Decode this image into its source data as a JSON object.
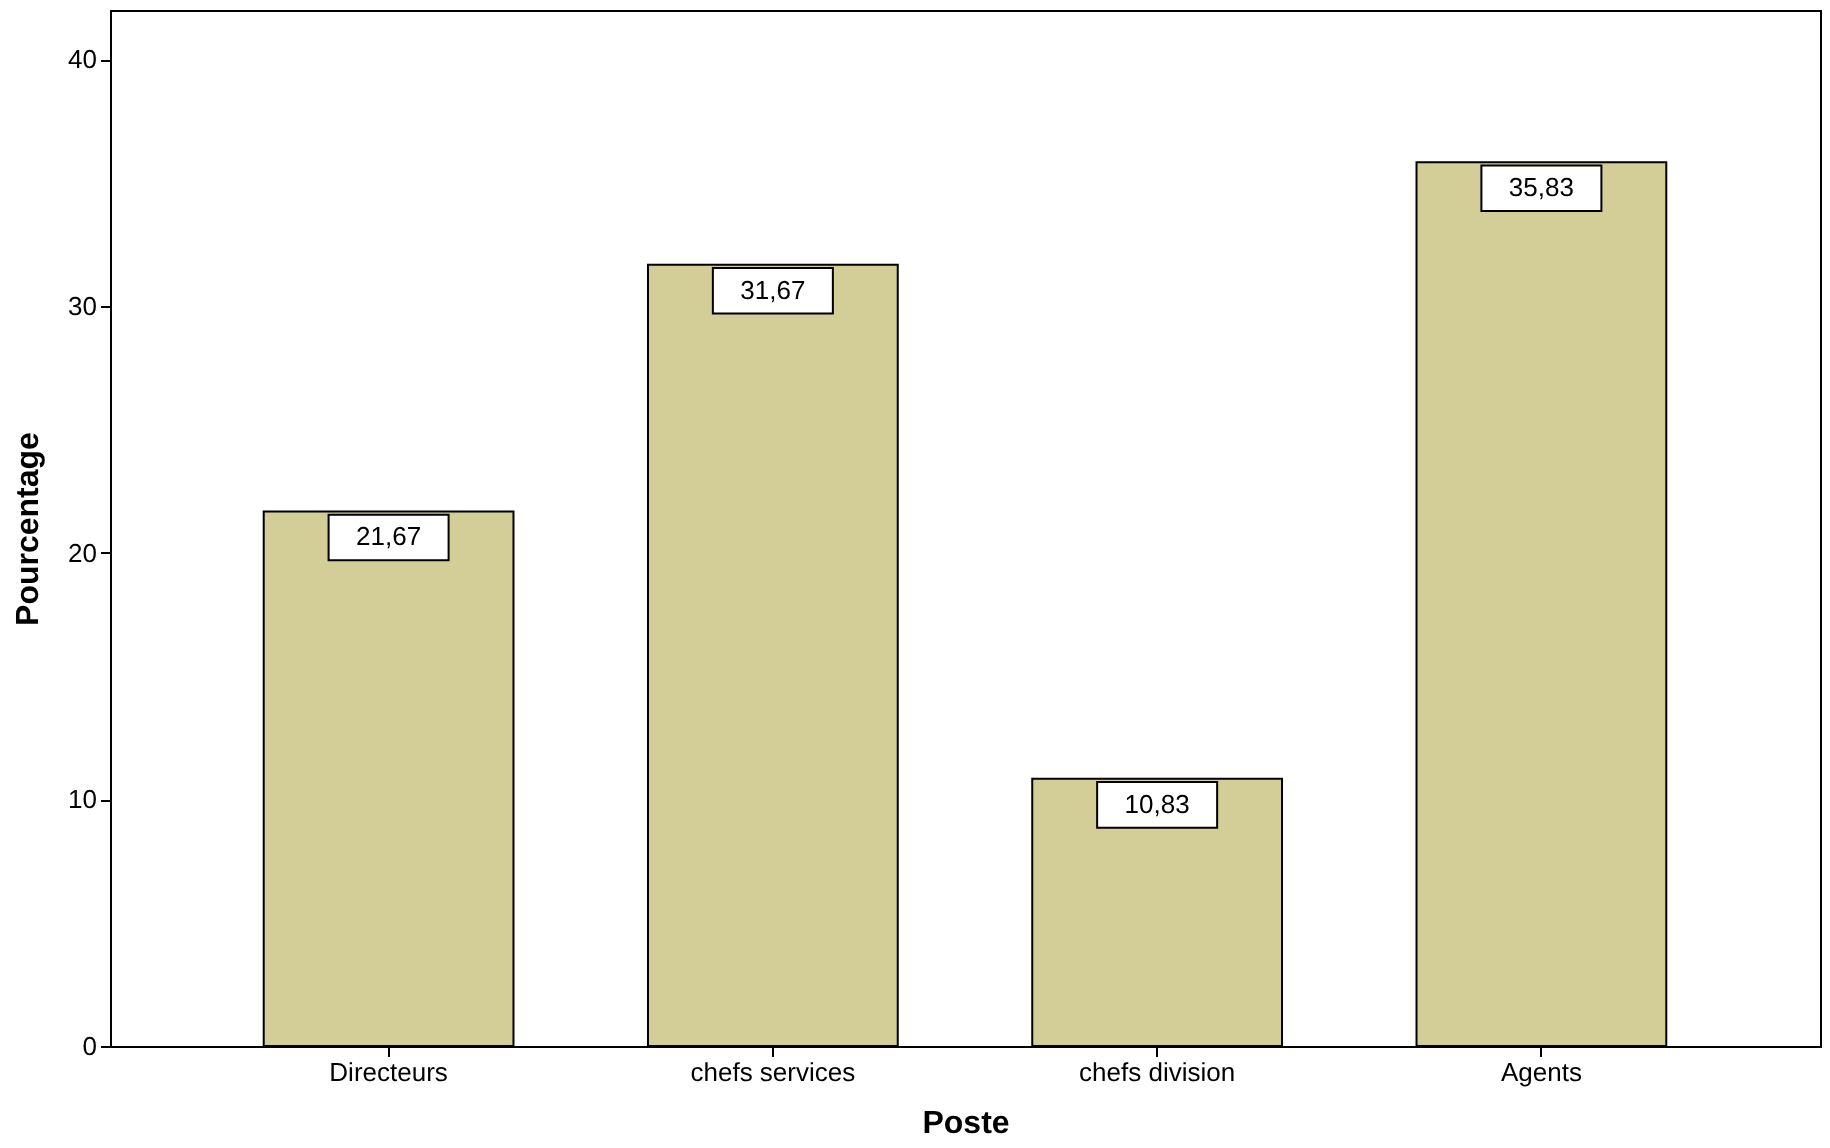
{
  "chart_data": {
    "type": "bar",
    "xlabel": "Poste",
    "ylabel": "Pourcentage",
    "categories": [
      "Directeurs",
      "chefs services",
      "chefs division",
      "Agents"
    ],
    "values": [
      21.67,
      31.67,
      10.83,
      35.83
    ],
    "value_labels": [
      "21,67",
      "31,67",
      "10,83",
      "35,83"
    ],
    "color": "#d3ce97",
    "ylim": [
      0,
      42
    ],
    "yticks": [
      0,
      10,
      20,
      30,
      40
    ],
    "grid": false
  }
}
